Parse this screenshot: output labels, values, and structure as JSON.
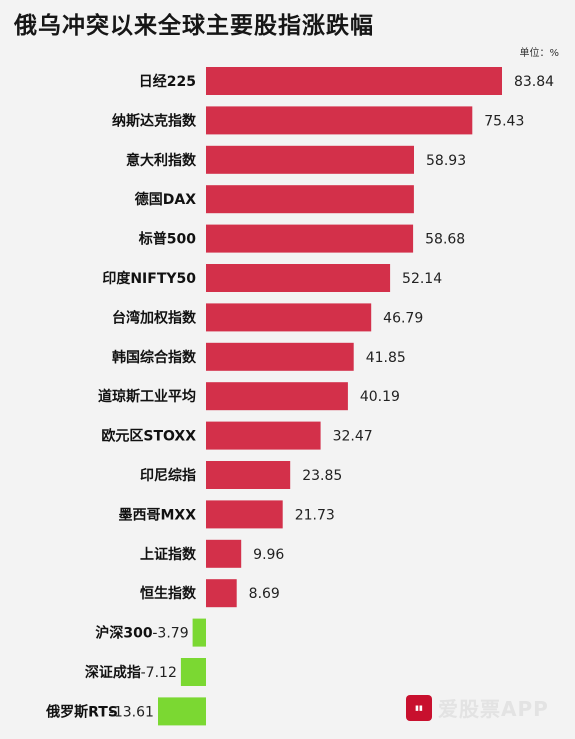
{
  "title": "俄乌冲突以来全球主要股指涨跌幅",
  "unit_label": "单位：%",
  "watermark": {
    "text": "爱股票APP"
  },
  "colors": {
    "positive": "#d3304a",
    "negative": "#7bd832",
    "background": "#f3f3f3"
  },
  "chart_data": {
    "type": "bar",
    "orientation": "horizontal",
    "title": "俄乌冲突以来全球主要股指涨跌幅",
    "unit": "%",
    "categories": [
      "日经225",
      "纳斯达克指数",
      "意大利指数",
      "德国DAX",
      "标普500",
      "印度NIFTY50",
      "台湾加权指数",
      "韩国综合指数",
      "道琼斯工业平均",
      "欧元区STOXX",
      "印尼综指",
      "墨西哥MXX",
      "上证指数",
      "恒生指数",
      "沪深300",
      "深证成指",
      "俄罗斯RTS"
    ],
    "values": [
      83.84,
      75.43,
      58.93,
      58.9,
      58.68,
      52.14,
      46.79,
      41.85,
      40.19,
      32.47,
      23.85,
      21.73,
      9.96,
      8.69,
      -3.79,
      -7.12,
      -13.61
    ],
    "value_labels": [
      "83.84",
      "75.43",
      "58.93",
      "",
      "58.68",
      "52.14",
      "46.79",
      "41.85",
      "40.19",
      "32.47",
      "23.85",
      "21.73",
      "9.96",
      "8.69",
      "-3.79",
      "-7.12",
      "-13.61"
    ],
    "legend": "none",
    "grid": false
  }
}
